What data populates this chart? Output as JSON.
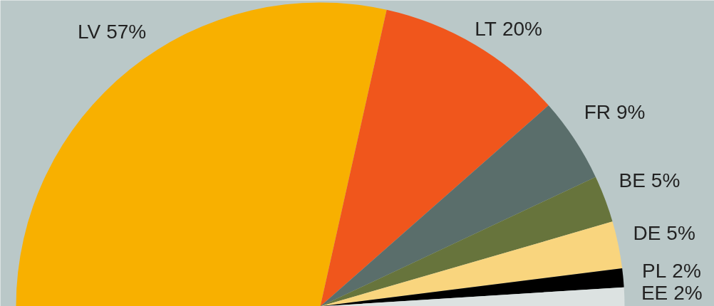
{
  "chart_data": {
    "type": "pie",
    "categories": [
      "LV",
      "LT",
      "FR",
      "BE",
      "DE",
      "PL",
      "EE"
    ],
    "values": [
      57,
      20,
      9,
      5,
      5,
      2,
      2
    ],
    "colors": [
      "#f8b000",
      "#f0561c",
      "#5a6e6b",
      "#67743c",
      "#f9d57e",
      "#000000",
      "#dce2e1"
    ],
    "value_labels": [
      "57%",
      "20%",
      "9%",
      "5%",
      "5%",
      "2%",
      "2%"
    ]
  }
}
